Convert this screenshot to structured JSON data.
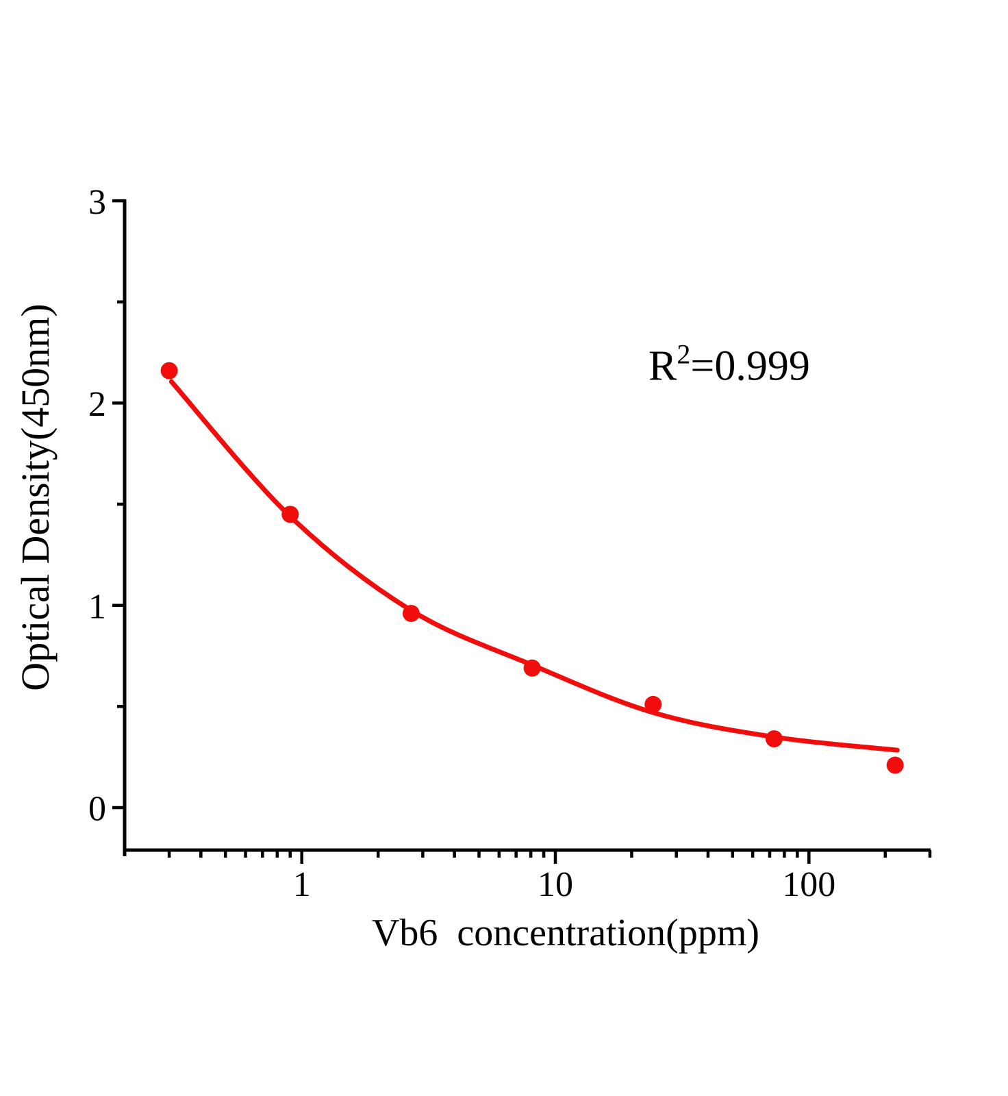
{
  "colors": {
    "accent_red": "#f20d0d",
    "axis_black": "#000000",
    "background": "#ffffff"
  },
  "chart_data": {
    "type": "scatter",
    "title": "",
    "xlabel": "Vb6  concentration(ppm)",
    "ylabel": "Optical Density(450nm)",
    "annotation": {
      "base": "R",
      "sup": "2",
      "rest": "=0.999"
    },
    "x_scale": "log",
    "xlim": [
      0.2,
      300
    ],
    "ylim": [
      -0.2,
      3
    ],
    "grid": false,
    "legend": "none",
    "x_ticks": {
      "major_values": [
        1,
        10,
        100
      ],
      "major_labels": [
        "1",
        "10",
        "100"
      ],
      "minor_values": [
        0.3,
        0.4,
        0.5,
        0.6,
        0.7,
        0.8,
        0.9,
        2,
        3,
        4,
        5,
        6,
        7,
        8,
        9,
        20,
        30,
        40,
        50,
        60,
        70,
        80,
        90,
        200,
        300
      ]
    },
    "y_ticks": {
      "major_values": [
        0,
        1,
        2,
        3
      ],
      "major_labels": [
        "0",
        "1",
        "2",
        "3"
      ],
      "minor_values": [
        0.5,
        1.5,
        2.5
      ]
    },
    "series": [
      {
        "marker": "circle",
        "color": "#f20d0d",
        "points": [
          [
            0.3,
            2.16
          ],
          [
            0.9,
            1.45
          ],
          [
            2.7,
            0.96
          ],
          [
            8.1,
            0.69
          ],
          [
            24.3,
            0.51
          ],
          [
            72.9,
            0.34
          ],
          [
            218.7,
            0.21
          ]
        ]
      }
    ],
    "fit_curve": {
      "color": "#f20d0d",
      "r_squared": "0.999",
      "anchors": [
        [
          0.306,
          2.106
        ],
        [
          0.9,
          1.44
        ],
        [
          2.7,
          0.975
        ],
        [
          8.1,
          0.705
        ],
        [
          24.3,
          0.47
        ],
        [
          72.9,
          0.349
        ],
        [
          223.0,
          0.284
        ]
      ]
    }
  }
}
